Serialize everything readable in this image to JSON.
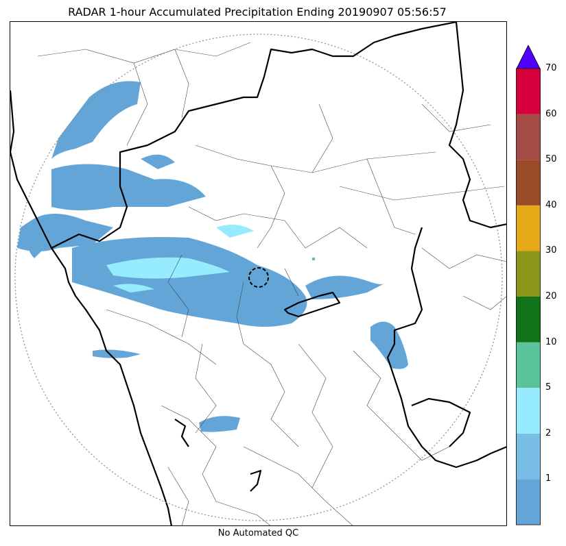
{
  "title": "RADAR 1-hour Accumulated Precipitation Ending 20190907 05:56:57",
  "footer": "No Automated QC",
  "colorbar": {
    "labels": [
      "1",
      "2",
      "5",
      "10",
      "20",
      "30",
      "40",
      "50",
      "60",
      "70"
    ],
    "colors": [
      "#64a5d7",
      "#78bee6",
      "#96ebff",
      "#5ac39b",
      "#0f7319",
      "#8c9619",
      "#e6aa19",
      "#9b4b28",
      "#a54b46",
      "#d7003c"
    ],
    "extend_color": "#5000ff"
  },
  "map": {
    "border_color": "#000000",
    "district_color": "#444444",
    "range_ring_color": "#888888",
    "precip_colors": {
      "light": "#64a5d7",
      "moderate": "#96ebff",
      "heavy": "#5ac39b"
    }
  }
}
